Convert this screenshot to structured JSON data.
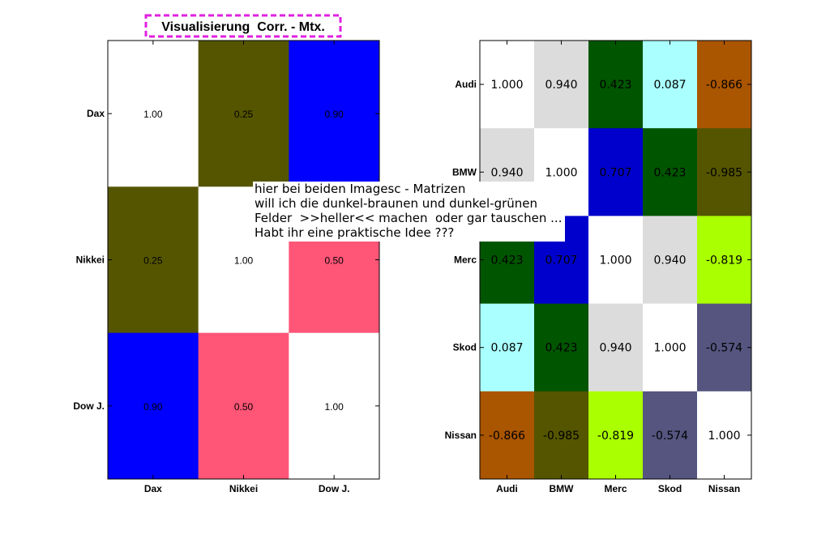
{
  "title": "Visualisierung  Corr. - Mtx.",
  "note_lines": [
    "hier bei beiden Imagesc - Matrizen",
    "will ich die dunkel-braunen und dunkel-grünen",
    "Felder  >>heller<< machen  oder gar tauschen ...",
    "Habt ihr eine praktische Idee ???"
  ],
  "chart_data": [
    {
      "type": "heatmap",
      "title": "Visualisierung  Corr. - Mtx.",
      "x_categories": [
        "Dax",
        "Nikkei",
        "Dow J."
      ],
      "y_categories": [
        "Dax",
        "Nikkei",
        "Dow J."
      ],
      "values": [
        [
          1.0,
          0.25,
          0.9
        ],
        [
          0.25,
          1.0,
          0.5
        ],
        [
          0.9,
          0.5,
          1.0
        ]
      ],
      "labels": [
        [
          "1.00",
          "0.25",
          "0.90"
        ],
        [
          "0.25",
          "1.00",
          "0.50"
        ],
        [
          "0.90",
          "0.50",
          "1.00"
        ]
      ],
      "colors": [
        [
          "#ffffff",
          "#555500",
          "#0000ff"
        ],
        [
          "#555500",
          "#ffffff",
          "#ff5577"
        ],
        [
          "#0000ff",
          "#ff5577",
          "#ffffff"
        ]
      ]
    },
    {
      "type": "heatmap",
      "title": "",
      "x_categories": [
        "Audi",
        "BMW",
        "Merc",
        "Skod",
        "Nissan"
      ],
      "y_categories": [
        "Audi",
        "BMW",
        "Merc",
        "Skod",
        "Nissan"
      ],
      "values": [
        [
          1.0,
          0.94,
          0.423,
          0.087,
          -0.866
        ],
        [
          0.94,
          1.0,
          0.707,
          0.423,
          -0.985
        ],
        [
          0.423,
          0.707,
          1.0,
          0.94,
          -0.819
        ],
        [
          0.087,
          0.423,
          0.94,
          1.0,
          -0.574
        ],
        [
          -0.866,
          -0.985,
          -0.819,
          -0.574,
          1.0
        ]
      ],
      "labels": [
        [
          "1.000",
          "0.940",
          "0.423",
          "0.087",
          "-0.866"
        ],
        [
          "0.940",
          "1.000",
          "0.707",
          "0.423",
          "-0.985"
        ],
        [
          "0.423",
          "0.707",
          "1.000",
          "0.940",
          "-0.819"
        ],
        [
          "0.087",
          "0.423",
          "0.940",
          "1.000",
          "-0.574"
        ],
        [
          "-0.866",
          "-0.985",
          "-0.819",
          "-0.574",
          "1.000"
        ]
      ],
      "colors": [
        [
          "#ffffff",
          "#dcdcdc",
          "#005500",
          "#aaffff",
          "#aa5500"
        ],
        [
          "#dcdcdc",
          "#ffffff",
          "#0000cc",
          "#005500",
          "#555500"
        ],
        [
          "#005500",
          "#0000cc",
          "#ffffff",
          "#dcdcdc",
          "#aaff00"
        ],
        [
          "#aaffff",
          "#005500",
          "#dcdcdc",
          "#ffffff",
          "#555580"
        ],
        [
          "#aa5500",
          "#555500",
          "#aaff00",
          "#555580",
          "#ffffff"
        ]
      ]
    }
  ]
}
